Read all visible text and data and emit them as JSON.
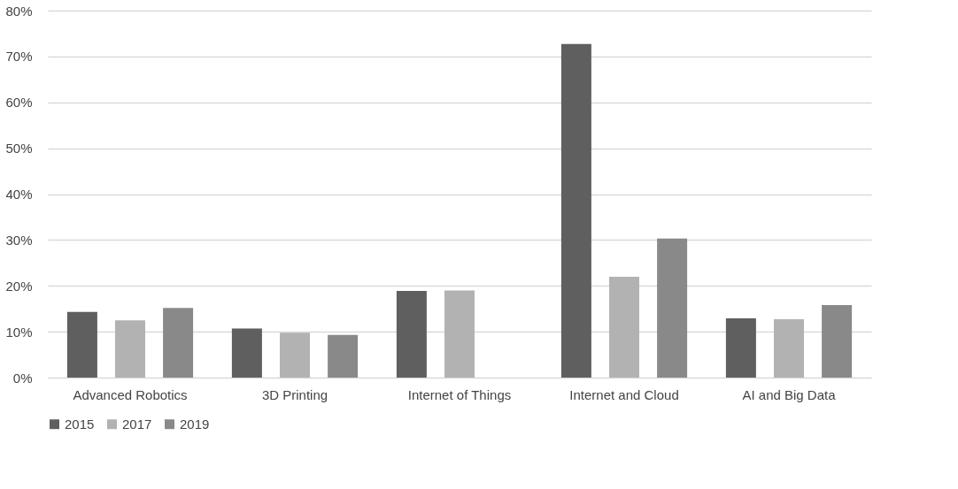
{
  "chart_data": {
    "type": "bar",
    "categories": [
      "Advanced Robotics",
      "3D Printing",
      "Internet of Things",
      "Internet and Cloud",
      "AI and Big Data"
    ],
    "series": [
      {
        "name": "2015",
        "color": "#5f5f5f",
        "values": [
          14.3,
          10.7,
          18.9,
          72.7,
          12.9
        ]
      },
      {
        "name": "2017",
        "color": "#b2b2b2",
        "values": [
          12.5,
          9.8,
          19.0,
          22.0,
          12.7
        ]
      },
      {
        "name": "2019",
        "color": "#898989",
        "values": [
          15.2,
          9.3,
          null,
          30.3,
          15.8
        ]
      }
    ],
    "ylim": [
      0,
      80
    ],
    "yticks": [
      {
        "value": 0,
        "label": "0%"
      },
      {
        "value": 10,
        "label": "10%"
      },
      {
        "value": 20,
        "label": "20%"
      },
      {
        "value": 30,
        "label": "30%"
      },
      {
        "value": 40,
        "label": "40%"
      },
      {
        "value": 50,
        "label": "50%"
      },
      {
        "value": 60,
        "label": "60%"
      },
      {
        "value": 70,
        "label": "70%"
      },
      {
        "value": 80,
        "label": "80%"
      }
    ],
    "grid": "y",
    "legend": "bottom"
  }
}
